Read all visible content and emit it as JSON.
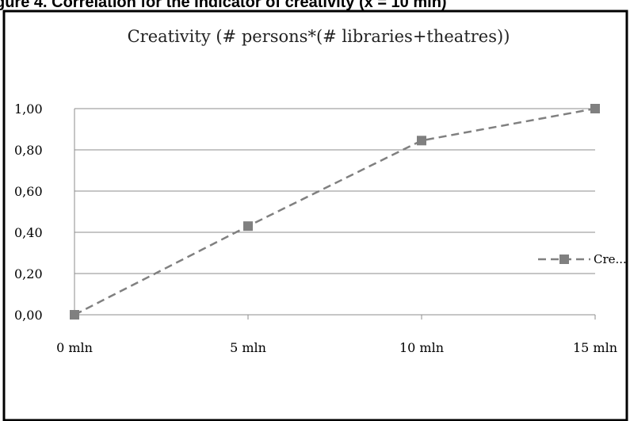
{
  "header_clip": "gure 4.  Correlation for the Indicator of creativity (x = 10 mln)",
  "chart_data": {
    "type": "line",
    "title": "Creativity (# persons*(# libraries+theatres))",
    "xlabel": "",
    "ylabel": "",
    "x": [
      0,
      5,
      10,
      15
    ],
    "x_tick_labels": [
      "0 mln",
      "5 mln",
      "10 mln",
      "15 mln"
    ],
    "xlim": [
      0,
      15
    ],
    "ylim": [
      0,
      1
    ],
    "y_tick_labels": [
      "0,00",
      "0,20",
      "0,40",
      "0,60",
      "0,80",
      "1,00"
    ],
    "y_ticks": [
      0,
      0.2,
      0.4,
      0.6,
      0.8,
      1.0
    ],
    "grid": "horizontal",
    "legend": "right",
    "series": [
      {
        "name": "Cre...",
        "values": [
          0,
          0.43,
          0.845,
          1.0
        ],
        "color": "#808080",
        "line": "dashed",
        "marker": "square"
      }
    ]
  }
}
